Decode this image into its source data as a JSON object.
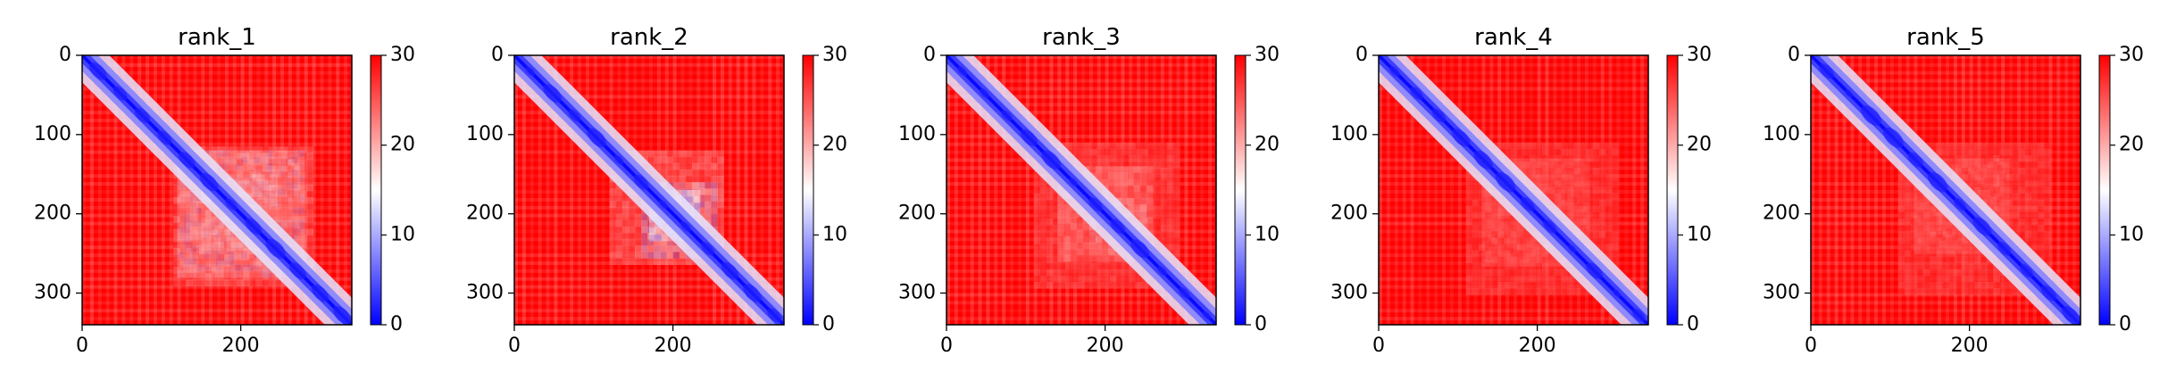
{
  "chart_data": {
    "type": "heatmap",
    "colormap": "bwr",
    "axis_range": [
      0,
      340
    ],
    "color_range": [
      0,
      30
    ],
    "x_ticks": [
      0,
      200
    ],
    "y_ticks": [
      0,
      100,
      200,
      300
    ],
    "colorbar_ticks": [
      0,
      10,
      20,
      30
    ],
    "panels": [
      {
        "title": "rank_1",
        "blocks": [
          [
            120,
            280,
            0.62
          ],
          [
            150,
            240,
            0.5
          ],
          [
            115,
            290,
            0.28
          ]
        ]
      },
      {
        "title": "rank_2",
        "blocks": [
          [
            160,
            250,
            0.78
          ],
          [
            120,
            260,
            0.3
          ],
          [
            170,
            230,
            0.6
          ]
        ]
      },
      {
        "title": "rank_3",
        "blocks": [
          [
            180,
            250,
            0.55
          ],
          [
            110,
            290,
            0.2
          ],
          [
            140,
            260,
            0.3
          ]
        ]
      },
      {
        "title": "rank_4",
        "blocks": [
          [
            130,
            260,
            0.28
          ],
          [
            110,
            300,
            0.18
          ]
        ]
      },
      {
        "title": "rank_5",
        "blocks": [
          [
            130,
            250,
            0.32
          ],
          [
            110,
            300,
            0.18
          ]
        ]
      }
    ]
  }
}
